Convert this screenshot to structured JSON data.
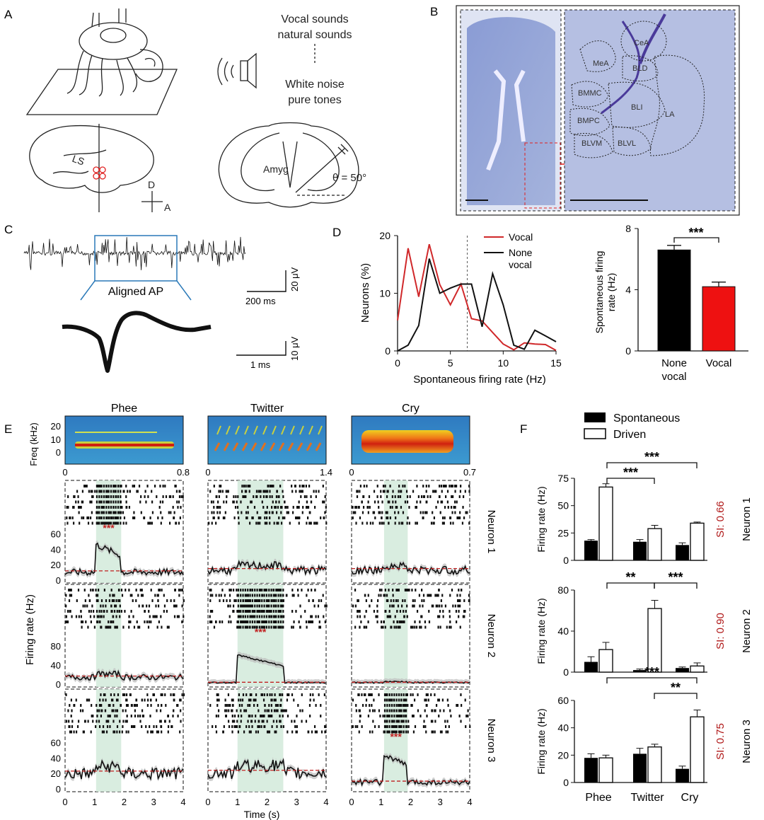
{
  "panel_letters": [
    "A",
    "B",
    "C",
    "D",
    "E",
    "F"
  ],
  "panelA": {
    "stimuli_top": [
      "Vocal sounds",
      "natural sounds"
    ],
    "stimuli_bottom": [
      "White noise",
      "pure tones"
    ],
    "ls_label": "LS",
    "orient_d": "D",
    "orient_a": "A",
    "amyg_label": "Amyg",
    "angle_label": "θ = 50°"
  },
  "panelB": {
    "regions": [
      "CeA",
      "MeA",
      "BLD",
      "BMMC",
      "BLI",
      "LA",
      "BMPC",
      "BLVM",
      "BLVL"
    ]
  },
  "panelC": {
    "aligned_label": "Aligned AP",
    "scale1_time": "200 ms",
    "scale1_volt": "20 μV",
    "scale2_time": "1 ms",
    "scale2_volt": "10 μV"
  },
  "panelD": {
    "line_chart": {
      "type": "line",
      "xlabel": "Spontaneous firing rate (Hz)",
      "ylabel": "Neurons (%)",
      "xlim": [
        0,
        15
      ],
      "ylim": [
        0,
        20
      ],
      "xticks": [
        "0",
        "5",
        "10",
        "15"
      ],
      "yticks": [
        "0",
        "10",
        "20"
      ],
      "legend": [
        "Vocal",
        "None vocal"
      ],
      "legend_lines": [
        "Vocal",
        "None",
        "vocal"
      ],
      "divider_x": 6.6,
      "series": [
        {
          "name": "Vocal",
          "color": "#d0282a",
          "x": [
            0,
            1,
            2,
            3,
            4,
            5,
            6,
            7,
            8,
            9,
            10,
            11,
            12,
            13,
            14,
            15
          ],
          "y": [
            5.3,
            17.8,
            9.4,
            18.5,
            11.5,
            8.0,
            11.6,
            5.6,
            5.2,
            3.2,
            1.2,
            0.2,
            1.4,
            1.2,
            1.1,
            0.1
          ]
        },
        {
          "name": "None vocal",
          "color": "#111111",
          "x": [
            0,
            1,
            2,
            3,
            4,
            5,
            6,
            7,
            8,
            9,
            10,
            11,
            12,
            13,
            14,
            15
          ],
          "y": [
            0,
            1.0,
            4.4,
            16.0,
            10.0,
            10.9,
            11.6,
            11.6,
            4.2,
            13.4,
            8.0,
            1.0,
            0.3,
            3.6,
            2.6,
            1.6
          ]
        }
      ]
    },
    "bar_chart": {
      "type": "bar",
      "ylabel_lines": [
        "Spontaneous firing",
        "rate (Hz)"
      ],
      "ylim": [
        0,
        8
      ],
      "yticks": [
        "0",
        "4",
        "8"
      ],
      "categories": [
        "None vocal",
        "Vocal"
      ],
      "cat_lines": [
        [
          "None",
          "vocal"
        ],
        [
          "Vocal"
        ]
      ],
      "values": [
        6.6,
        4.2
      ],
      "errors": [
        0.3,
        0.3
      ],
      "colors": [
        "#000000",
        "#ee1111"
      ],
      "sig": "***"
    }
  },
  "panelE": {
    "columns": [
      {
        "title": "Phee",
        "dur_label": "0.8",
        "stim": [
          1.05,
          1.9
        ]
      },
      {
        "title": "Twitter",
        "dur_label": "1.4",
        "stim": [
          1.0,
          2.55
        ]
      },
      {
        "title": "Cry",
        "dur_label": "0.7",
        "stim": [
          1.1,
          1.9
        ]
      }
    ],
    "freq_label": "Freq (kHz)",
    "freq_ticks": [
      "0",
      "10",
      "20"
    ],
    "spec_zero": "0",
    "neurons": [
      {
        "label": "Neuron 1",
        "yticks": [
          "0",
          "20",
          "40",
          "60"
        ],
        "ymax": 65,
        "baselines": [
          12,
          15,
          15
        ],
        "sig_col": 0
      },
      {
        "label": "Neuron 2",
        "yticks": [
          "0",
          "40",
          "80"
        ],
        "ymax": 105,
        "baselines": [
          17,
          4,
          4
        ],
        "sig_col": 1
      },
      {
        "label": "Neuron 3",
        "yticks": [
          "0",
          "20",
          "40",
          "60"
        ],
        "ymax": 65,
        "baselines": [
          23,
          24,
          10
        ],
        "sig_col": 2
      }
    ],
    "sig_mark": "***",
    "ylabel": "Firing rate (Hz)",
    "xlabel": "Time (s)",
    "xticks": [
      "0",
      "1",
      "2",
      "3",
      "4"
    ]
  },
  "panelF": {
    "legend": [
      "Spontaneous",
      "Driven"
    ],
    "categories": [
      "Phee",
      "Twitter",
      "Cry"
    ],
    "ylabel": "Firing rate (Hz)",
    "charts": [
      {
        "neuron": "Neuron 1",
        "si": "SI: 0.66",
        "ymax": 75,
        "yticks": [
          "0",
          "25",
          "50",
          "75"
        ],
        "spont": [
          18,
          17,
          14
        ],
        "spont_err": [
          1,
          2,
          2
        ],
        "driven": [
          67,
          29,
          34
        ],
        "driven_err": [
          3,
          3,
          1
        ],
        "sigs": [
          {
            "from": 0,
            "to": 1,
            "label": "***",
            "level": 0
          },
          {
            "from": 0,
            "to": 2,
            "label": "***",
            "level": 1
          }
        ]
      },
      {
        "neuron": "Neuron 2",
        "si": "SI: 0.90",
        "ymax": 80,
        "yticks": [
          "0",
          "40",
          "80"
        ],
        "spont": [
          10,
          2,
          4
        ],
        "spont_err": [
          5,
          1,
          1
        ],
        "driven": [
          22,
          62,
          6
        ],
        "driven_err": [
          7,
          8,
          3
        ],
        "sigs": [
          {
            "from": 0,
            "to": 1,
            "label": "**",
            "level": 0
          },
          {
            "from": 1,
            "to": 2,
            "label": "***",
            "level": 0
          }
        ]
      },
      {
        "neuron": "Neuron 3",
        "si": "SI: 0.75",
        "ymax": 60,
        "yticks": [
          "0",
          "20",
          "40",
          "60"
        ],
        "spont": [
          18,
          21,
          10
        ],
        "spont_err": [
          3,
          4,
          2
        ],
        "driven": [
          18,
          26,
          48
        ],
        "driven_err": [
          2,
          2,
          5
        ],
        "sigs": [
          {
            "from": 1,
            "to": 2,
            "label": "**",
            "level": 0
          },
          {
            "from": 0,
            "to": 2,
            "label": "***",
            "level": 1
          }
        ]
      }
    ]
  }
}
